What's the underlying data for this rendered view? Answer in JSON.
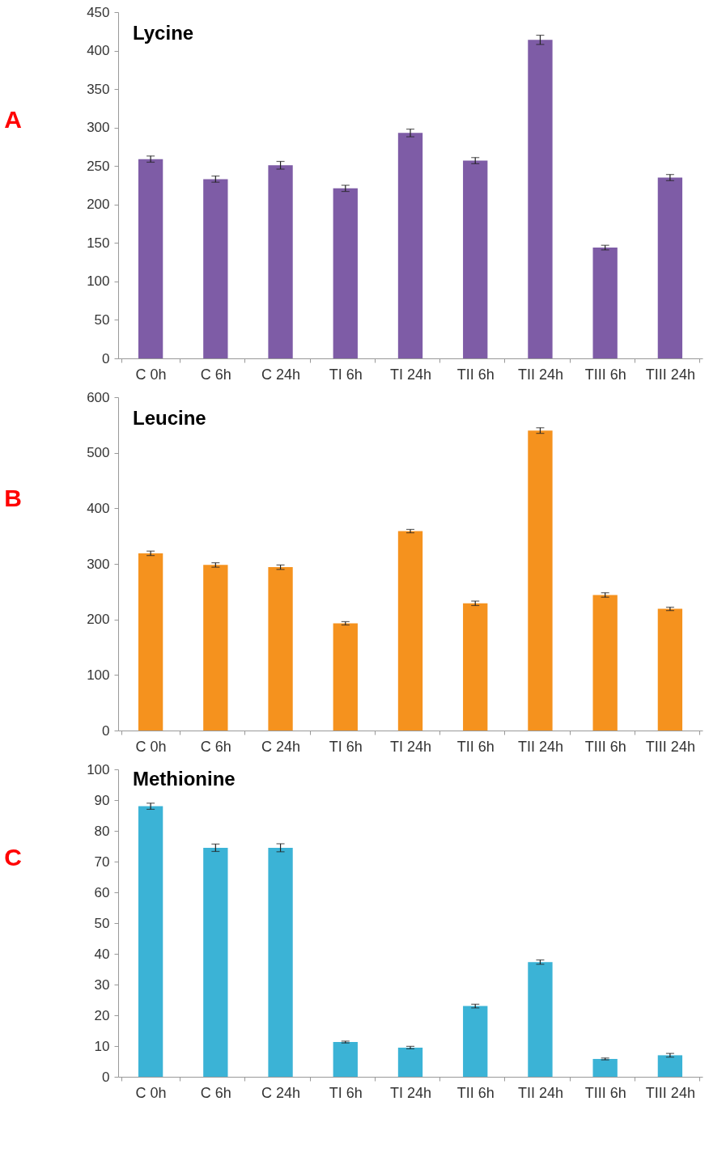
{
  "chart_data": [
    {
      "type": "bar",
      "title": "Lycine",
      "annotations": [
        "A"
      ],
      "categories": [
        "C 0h",
        "C 6h",
        "C 24h",
        "TI 6h",
        "TI 24h",
        "TII 6h",
        "TII 24h",
        "TIII 6h",
        "TIII 24h"
      ],
      "series": [
        {
          "color": "#7e5ca6",
          "values": [
            259,
            233,
            251,
            221,
            293,
            257,
            414,
            144,
            235
          ],
          "errors": [
            4,
            4,
            5,
            4,
            5,
            4,
            6,
            3,
            4
          ]
        }
      ],
      "ylim": [
        0,
        450
      ],
      "yticks": [
        0,
        50,
        100,
        150,
        200,
        250,
        300,
        350,
        400,
        450
      ],
      "grid": false
    },
    {
      "type": "bar",
      "title": "Leucine",
      "annotations": [
        "B"
      ],
      "categories": [
        "C 0h",
        "C 6h",
        "C 24h",
        "TI 6h",
        "TI 24h",
        "TII 6h",
        "TII 24h",
        "TIII 6h",
        "TIII 24h"
      ],
      "series": [
        {
          "color": "#f5921e",
          "values": [
            319,
            298,
            294,
            193,
            359,
            229,
            540,
            244,
            219
          ],
          "errors": [
            4,
            4,
            4,
            3,
            3,
            4,
            5,
            4,
            3
          ]
        }
      ],
      "ylim": [
        0,
        600
      ],
      "yticks": [
        0,
        100,
        200,
        300,
        400,
        500,
        600
      ],
      "grid": false
    },
    {
      "type": "bar",
      "title": "Methionine",
      "annotations": [
        "C"
      ],
      "categories": [
        "C 0h",
        "C 6h",
        "C 24h",
        "TI 6h",
        "TI 24h",
        "TII 6h",
        "TII 24h",
        "TIII 6h",
        "TIII 24h"
      ],
      "series": [
        {
          "color": "#3bb3d6",
          "values": [
            88,
            74.5,
            74.5,
            11.3,
            9.5,
            23,
            37.3,
            5.8,
            7
          ],
          "errors": [
            1,
            1.2,
            1.3,
            0.3,
            0.4,
            0.6,
            0.7,
            0.3,
            0.6
          ]
        }
      ],
      "ylim": [
        0,
        100
      ],
      "yticks": [
        0,
        10,
        20,
        30,
        40,
        50,
        60,
        70,
        80,
        90,
        100
      ],
      "grid": false
    }
  ]
}
